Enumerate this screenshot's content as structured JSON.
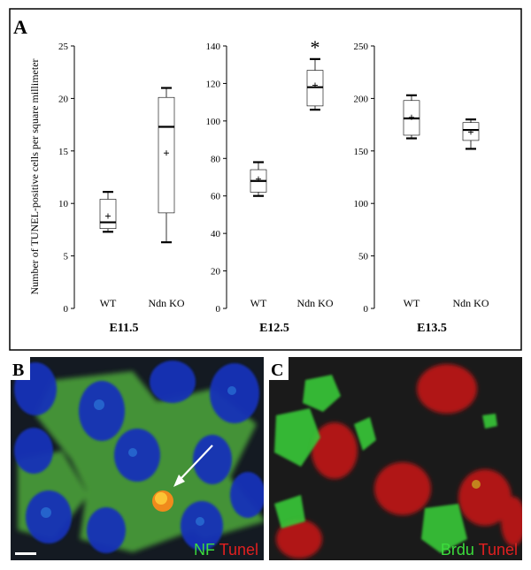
{
  "panels": {
    "a": {
      "letter": "A"
    },
    "b": {
      "letter": "B",
      "label_green": "NF",
      "label_red": "Tunel",
      "label_green_color": "#3cdc3c",
      "label_red_color": "#e02020"
    },
    "c": {
      "letter": "C",
      "label_green": "Brdu",
      "label_red": "Tunel",
      "label_green_color": "#3cdc3c",
      "label_red_color": "#e02020"
    }
  },
  "y_axis_label": "Number of TUNEL-positive cells per square millimeter",
  "chart_data": [
    {
      "type": "box",
      "xlabel": "E11.5",
      "categories": [
        "WT",
        "Ndn KO"
      ],
      "ylim": [
        0,
        25
      ],
      "yticks": [
        0,
        5,
        10,
        15,
        20,
        25
      ],
      "boxes": [
        {
          "min": 7.3,
          "q1": 7.6,
          "median": 8.2,
          "q3": 10.4,
          "max": 11.1,
          "mean": 8.8
        },
        {
          "min": 6.3,
          "q1": 9.1,
          "median": 17.3,
          "q3": 20.1,
          "max": 21.0,
          "mean": 14.8
        }
      ],
      "annotation": ""
    },
    {
      "type": "box",
      "xlabel": "E12.5",
      "categories": [
        "WT",
        "Ndn KO"
      ],
      "ylim": [
        0,
        140
      ],
      "yticks": [
        0,
        20,
        40,
        60,
        80,
        100,
        120,
        140
      ],
      "boxes": [
        {
          "min": 60,
          "q1": 62,
          "median": 68,
          "q3": 74,
          "max": 78,
          "mean": 69
        },
        {
          "min": 106,
          "q1": 108,
          "median": 118,
          "q3": 127,
          "max": 133,
          "mean": 119
        }
      ],
      "annotation": "*"
    },
    {
      "type": "box",
      "xlabel": "E13.5",
      "categories": [
        "WT",
        "Ndn KO"
      ],
      "ylim": [
        0,
        250
      ],
      "yticks": [
        0,
        50,
        100,
        150,
        200,
        250
      ],
      "boxes": [
        {
          "min": 162,
          "q1": 165,
          "median": 181,
          "q3": 198,
          "max": 203,
          "mean": 182
        },
        {
          "min": 152,
          "q1": 160,
          "median": 170,
          "q3": 177,
          "max": 180,
          "mean": 168
        }
      ],
      "annotation": ""
    }
  ]
}
